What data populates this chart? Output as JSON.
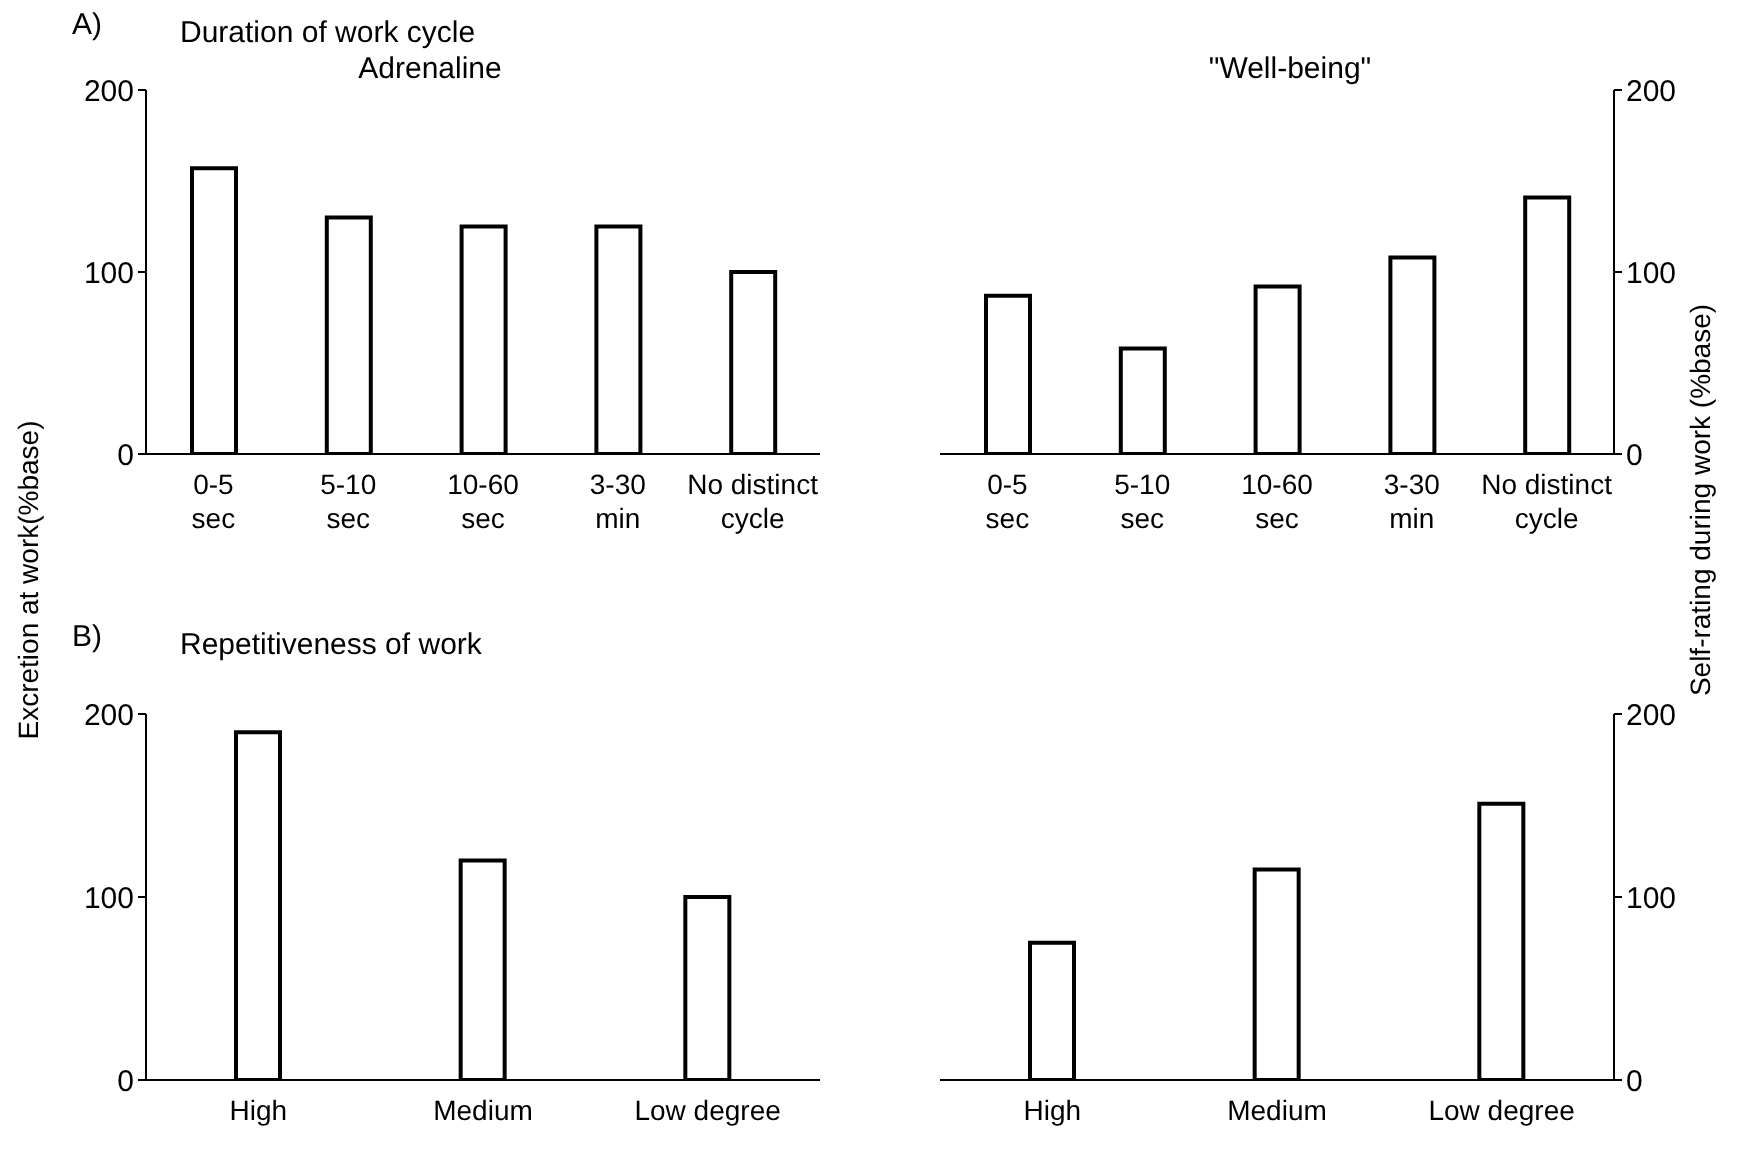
{
  "chart_data": [
    {
      "type": "bar",
      "title": "Duration of work cycle",
      "subtitle": "Adrenaline",
      "annotations": [
        "A)"
      ],
      "ylabel": "Excretion at work(%base)",
      "categories": [
        "0-5\nsec",
        "5-10\nsec",
        "10-60\nsec",
        "3-30\nmin",
        "No distinct\ncycle"
      ],
      "series": [
        {
          "color": "#ffffff",
          "values": [
            157,
            130,
            125,
            125,
            100
          ]
        }
      ],
      "ylim": [
        0,
        200
      ],
      "yticks": [
        0,
        100,
        200
      ],
      "grid": false,
      "legend": false
    },
    {
      "type": "bar",
      "subtitle": "\"Well-being\"",
      "y2label": "Self-rating during work (%base)",
      "categories": [
        "0-5\nsec",
        "5-10\nsec",
        "10-60\nsec",
        "3-30\nmin",
        "No distinct\ncycle"
      ],
      "series": [
        {
          "color": "#ffffff",
          "axis": "y2",
          "values": [
            87,
            58,
            92,
            108,
            141
          ]
        }
      ],
      "y2lim": [
        0,
        200
      ],
      "y2ticks": [
        0,
        100,
        200
      ],
      "grid": false,
      "legend": false
    },
    {
      "type": "bar",
      "title": "Repetitiveness of work",
      "annotations": [
        "B)"
      ],
      "categories": [
        "High",
        "Medium",
        "Low degree"
      ],
      "series": [
        {
          "color": "#ffffff",
          "values": [
            190,
            120,
            100
          ]
        }
      ],
      "ylim": [
        0,
        200
      ],
      "yticks": [
        0,
        100,
        200
      ],
      "grid": false,
      "legend": false
    },
    {
      "type": "bar",
      "categories": [
        "High",
        "Medium",
        "Low degree"
      ],
      "series": [
        {
          "color": "#ffffff",
          "axis": "y2",
          "values": [
            75,
            115,
            151
          ]
        }
      ],
      "y2lim": [
        0,
        200
      ],
      "y2ticks": [
        0,
        100,
        200
      ],
      "grid": false,
      "legend": false
    }
  ]
}
